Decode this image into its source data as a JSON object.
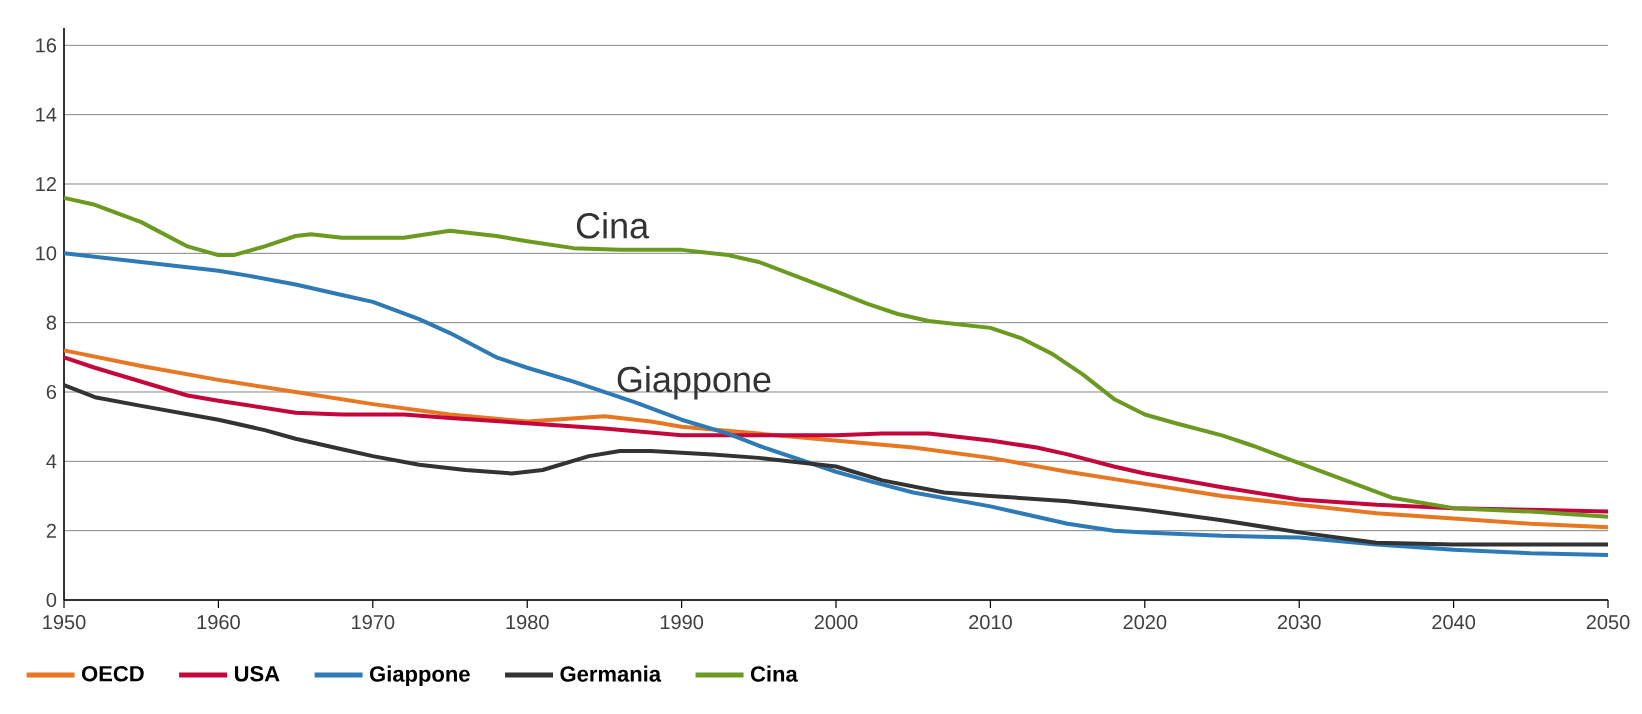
{
  "chart_data": {
    "type": "line",
    "xlim": [
      1950,
      2050
    ],
    "ylim": [
      0,
      16.5
    ],
    "xticks": [
      1950,
      1960,
      1970,
      1980,
      1990,
      2000,
      2010,
      2020,
      2030,
      2040,
      2050
    ],
    "yticks": [
      0,
      2,
      4,
      6,
      8,
      10,
      12,
      14,
      16
    ],
    "grid": "y",
    "legend": "bottom",
    "marker": "none",
    "line_style": "solid",
    "annotations": [
      "Cina",
      "Giappone"
    ],
    "series": [
      {
        "name": "OECD",
        "color": "#e87722",
        "x": [
          1950,
          1955,
          1960,
          1965,
          1970,
          1975,
          1980,
          1985,
          1988,
          1990,
          1995,
          2000,
          2005,
          2010,
          2015,
          2020,
          2025,
          2030,
          2035,
          2040,
          2045,
          2050
        ],
        "values": [
          7.2,
          6.75,
          6.35,
          6.0,
          5.65,
          5.35,
          5.15,
          5.3,
          5.15,
          5.0,
          4.8,
          4.6,
          4.4,
          4.1,
          3.7,
          3.35,
          3.0,
          2.75,
          2.5,
          2.35,
          2.2,
          2.1
        ]
      },
      {
        "name": "USA",
        "color": "#c4063d",
        "x": [
          1950,
          1952,
          1955,
          1958,
          1960,
          1965,
          1968,
          1972,
          1975,
          1980,
          1985,
          1990,
          1995,
          2000,
          2003,
          2006,
          2010,
          2013,
          2015,
          2018,
          2020,
          2025,
          2030,
          2035,
          2040,
          2045,
          2050
        ],
        "values": [
          7.0,
          6.7,
          6.3,
          5.9,
          5.75,
          5.4,
          5.35,
          5.35,
          5.25,
          5.1,
          4.95,
          4.75,
          4.75,
          4.75,
          4.8,
          4.8,
          4.6,
          4.4,
          4.2,
          3.85,
          3.65,
          3.25,
          2.9,
          2.75,
          2.65,
          2.6,
          2.55
        ]
      },
      {
        "name": "Giappone",
        "color": "#2e7ab6",
        "x": [
          1950,
          1955,
          1960,
          1962,
          1965,
          1968,
          1970,
          1973,
          1975,
          1978,
          1980,
          1983,
          1985,
          1987,
          1990,
          1993,
          1995,
          2000,
          2002,
          2005,
          2010,
          2015,
          2018,
          2020,
          2025,
          2030,
          2035,
          2040,
          2045,
          2050
        ],
        "values": [
          10.0,
          9.75,
          9.5,
          9.35,
          9.1,
          8.8,
          8.6,
          8.1,
          7.7,
          7.0,
          6.7,
          6.3,
          6.0,
          5.7,
          5.2,
          4.8,
          4.45,
          3.7,
          3.45,
          3.1,
          2.7,
          2.2,
          2.0,
          1.95,
          1.85,
          1.8,
          1.6,
          1.45,
          1.35,
          1.3
        ]
      },
      {
        "name": "Germania",
        "color": "#333333",
        "x": [
          1950,
          1952,
          1955,
          1960,
          1963,
          1965,
          1968,
          1970,
          1973,
          1976,
          1979,
          1981,
          1984,
          1986,
          1988,
          1992,
          1995,
          2000,
          2003,
          2007,
          2010,
          2015,
          2020,
          2025,
          2030,
          2035,
          2040,
          2045,
          2050
        ],
        "values": [
          6.2,
          5.85,
          5.6,
          5.2,
          4.9,
          4.65,
          4.35,
          4.15,
          3.9,
          3.75,
          3.65,
          3.75,
          4.15,
          4.3,
          4.3,
          4.2,
          4.1,
          3.85,
          3.45,
          3.1,
          3.0,
          2.85,
          2.6,
          2.3,
          1.95,
          1.65,
          1.6,
          1.6,
          1.6
        ]
      },
      {
        "name": "Cina",
        "color": "#6a9a1f",
        "x": [
          1950,
          1952,
          1955,
          1958,
          1960,
          1961,
          1963,
          1965,
          1966,
          1968,
          1972,
          1975,
          1978,
          1980,
          1983,
          1986,
          1990,
          1993,
          1995,
          2000,
          2002,
          2004,
          2006,
          2010,
          2012,
          2014,
          2016,
          2018,
          2020,
          2022,
          2025,
          2027,
          2030,
          2033,
          2036,
          2040,
          2045,
          2050
        ],
        "values": [
          11.6,
          11.4,
          10.9,
          10.2,
          9.95,
          9.95,
          10.2,
          10.5,
          10.55,
          10.45,
          10.45,
          10.65,
          10.5,
          10.35,
          10.15,
          10.1,
          10.1,
          9.95,
          9.75,
          8.9,
          8.55,
          8.25,
          8.05,
          7.85,
          7.55,
          7.1,
          6.5,
          5.8,
          5.35,
          5.1,
          4.75,
          4.45,
          3.95,
          3.45,
          2.95,
          2.65,
          2.55,
          2.4
        ]
      }
    ]
  }
}
